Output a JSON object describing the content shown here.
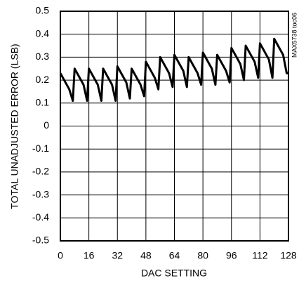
{
  "chart_data": {
    "type": "line",
    "xlabel": "DAC SETTING",
    "ylabel": "TOTAL UNADJUSTED ERROR (LSB)",
    "annotation": "MAX5738 toc06",
    "x": [
      0,
      5,
      7,
      8,
      13,
      15,
      16,
      21,
      23,
      24,
      29,
      31,
      32,
      37,
      39,
      40,
      45,
      47,
      48,
      53,
      55,
      56,
      61,
      63,
      64,
      69,
      71,
      72,
      77,
      79,
      80,
      85,
      87,
      88,
      93,
      95,
      96,
      101,
      103,
      104,
      109,
      111,
      112,
      117,
      119,
      120,
      125,
      127,
      128
    ],
    "series": [
      {
        "color": "#000000",
        "values": [
          0.23,
          0.16,
          0.11,
          0.25,
          0.18,
          0.11,
          0.25,
          0.18,
          0.11,
          0.25,
          0.18,
          0.11,
          0.26,
          0.19,
          0.12,
          0.25,
          0.18,
          0.13,
          0.28,
          0.21,
          0.16,
          0.3,
          0.23,
          0.17,
          0.31,
          0.24,
          0.17,
          0.3,
          0.23,
          0.18,
          0.32,
          0.25,
          0.18,
          0.31,
          0.24,
          0.19,
          0.34,
          0.27,
          0.2,
          0.35,
          0.28,
          0.21,
          0.36,
          0.29,
          0.21,
          0.38,
          0.31,
          0.23,
          0.23
        ]
      }
    ],
    "xlim": [
      0,
      128
    ],
    "xticks": [
      0,
      16,
      32,
      48,
      64,
      80,
      96,
      112,
      128
    ],
    "ylim": [
      -0.5,
      0.5
    ],
    "yticks": [
      0.5,
      0.4,
      0.3,
      0.2,
      0.1,
      0,
      -0.1,
      -0.2,
      -0.3,
      -0.4,
      -0.5
    ],
    "grid": true
  }
}
